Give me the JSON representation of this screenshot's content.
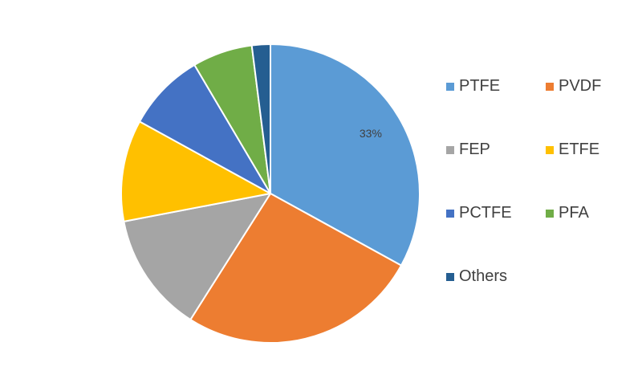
{
  "chart_data": {
    "type": "pie",
    "slices": [
      {
        "name": "PTFE",
        "value": 33,
        "color": "#5B9BD5"
      },
      {
        "name": "PVDF",
        "value": 26,
        "color": "#ED7D31"
      },
      {
        "name": "FEP",
        "value": 13,
        "color": "#A5A5A5"
      },
      {
        "name": "ETFE",
        "value": 11,
        "color": "#FFC000"
      },
      {
        "name": "PCTFE",
        "value": 8.5,
        "color": "#4472C4"
      },
      {
        "name": "PFA",
        "value": 6.5,
        "color": "#70AD47"
      },
      {
        "name": "Others",
        "value": 2,
        "color": "#255E91"
      }
    ],
    "data_labels": [
      {
        "slice": "PTFE",
        "text": "33%"
      }
    ],
    "legend_placement": "right"
  }
}
